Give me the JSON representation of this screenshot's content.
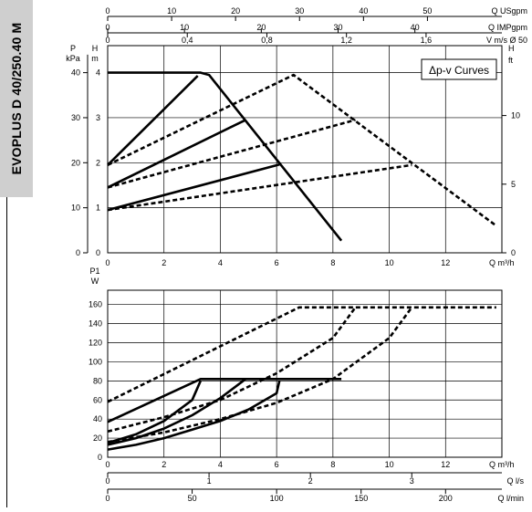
{
  "title": "EVOPLUS D 40/250.40 M",
  "legend_label": "Δp-v Curves",
  "colors": {
    "curve": "#000000",
    "grid": "#000000",
    "sidebar": "#cfcfcf"
  },
  "chart_data": [
    {
      "type": "line",
      "name": "head",
      "xlabel": "Q m³/h",
      "x_ticks": [
        "0",
        "2",
        "4",
        "6",
        "8",
        "10",
        "12"
      ],
      "xlim": [
        0,
        14
      ],
      "y_left_label": {
        "unit": "P",
        "sub": "kPa",
        "ticks": [
          "0",
          "10",
          "20",
          "30",
          "40"
        ]
      },
      "y_mid_label": {
        "unit": "H",
        "sub": "m",
        "ticks": [
          "0",
          "1",
          "2",
          "3",
          "4"
        ]
      },
      "y_right_label": {
        "unit": "H",
        "sub": "ft",
        "ticks": [
          "0",
          "5",
          "10"
        ]
      },
      "ylim": [
        0,
        4.6
      ],
      "top_axes": [
        {
          "label": "Q USgpm",
          "ticks": [
            "0",
            "10",
            "20",
            "30",
            "40",
            "50"
          ]
        },
        {
          "label": "Q IMPgpm",
          "ticks": [
            "0",
            "10",
            "20",
            "30",
            "40"
          ]
        },
        {
          "label": "V m/s Ø 50",
          "ticks": [
            "0",
            "0,4",
            "0,8",
            "1,2",
            "1,6"
          ]
        }
      ],
      "series": [
        {
          "style": "solid",
          "x": [
            0,
            3.3,
            3.6,
            8.3
          ],
          "y": [
            4,
            4,
            3.95,
            0.27
          ]
        },
        {
          "style": "solid",
          "x": [
            0,
            3.2
          ],
          "y": [
            1.95,
            3.93
          ]
        },
        {
          "style": "solid",
          "x": [
            0,
            4.9
          ],
          "y": [
            1.45,
            2.95
          ]
        },
        {
          "style": "solid",
          "x": [
            0,
            6.1
          ],
          "y": [
            0.95,
            1.96
          ]
        },
        {
          "style": "dotted",
          "x": [
            0,
            6.6,
            13.8
          ],
          "y": [
            1.95,
            3.95,
            0.6
          ]
        },
        {
          "style": "dotted",
          "x": [
            0,
            8.8
          ],
          "y": [
            1.45,
            2.95
          ]
        },
        {
          "style": "dotted",
          "x": [
            0,
            10.8
          ],
          "y": [
            0.95,
            1.95
          ]
        }
      ]
    },
    {
      "type": "line",
      "name": "power",
      "xlabel": "Q m³/h",
      "x_ticks": [
        "0",
        "2",
        "4",
        "6",
        "8",
        "10",
        "12"
      ],
      "xlim": [
        0,
        14
      ],
      "ylabel": {
        "unit": "P1",
        "sub": "W"
      },
      "y_ticks": [
        "0",
        "20",
        "40",
        "60",
        "80",
        "100",
        "120",
        "140",
        "160"
      ],
      "ylim": [
        0,
        175
      ],
      "bottom_axes": [
        {
          "label": "Q l/s",
          "ticks": [
            "0",
            "1",
            "2",
            "3"
          ]
        },
        {
          "label": "Q l/min",
          "ticks": [
            "0",
            "50",
            "100",
            "150",
            "200"
          ]
        }
      ],
      "series": [
        {
          "style": "solid",
          "x": [
            0,
            3.3,
            8.3
          ],
          "y": [
            37,
            82,
            82
          ]
        },
        {
          "style": "solid",
          "x": [
            0,
            1,
            2,
            3,
            3.3
          ],
          "y": [
            15,
            24,
            38,
            60,
            80
          ]
        },
        {
          "style": "solid",
          "x": [
            0,
            1,
            2,
            3,
            4,
            4.9
          ],
          "y": [
            13,
            20,
            30,
            44,
            62,
            82
          ]
        },
        {
          "style": "solid",
          "x": [
            0,
            1,
            2,
            3,
            4,
            5,
            6,
            6.1
          ],
          "y": [
            8,
            13,
            20,
            29,
            38,
            50,
            67,
            80
          ]
        },
        {
          "style": "dotted",
          "x": [
            0,
            6.8,
            13.8
          ],
          "y": [
            58,
            157,
            157
          ]
        },
        {
          "style": "dotted",
          "x": [
            0,
            2,
            4,
            6,
            8,
            8.8
          ],
          "y": [
            27,
            42,
            60,
            88,
            125,
            157
          ]
        },
        {
          "style": "dotted",
          "x": [
            0,
            2,
            4,
            6,
            8,
            10,
            10.8
          ],
          "y": [
            16,
            26,
            40,
            57,
            82,
            125,
            157
          ]
        }
      ]
    }
  ]
}
